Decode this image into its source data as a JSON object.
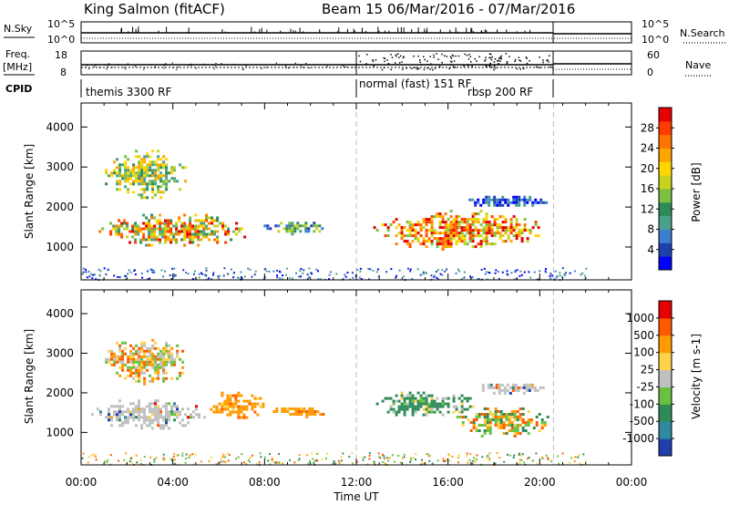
{
  "header": {
    "station": "King Salmon (fitACF)",
    "beam_range": "Beam 15  06/Mar/2016 - 07/Mar/2016"
  },
  "strip": {
    "nsky_label": "N.Sky",
    "nsearch_label": "N.Search",
    "noise_tick_top": "10^5",
    "noise_tick_bottom": "10^0",
    "freq_label": "Freq.",
    "freq_unit": "[MHz]",
    "freq_ticks": [
      "18",
      "8"
    ],
    "nave_label": "Nave",
    "nave_ticks": [
      "60",
      "0"
    ],
    "cpid_label": "CPID",
    "cpid_segments": [
      "themis 3300 RF",
      "normal (fast) 151 RF",
      "rbsp 200 RF"
    ]
  },
  "chart_data": [
    {
      "type": "heatmap",
      "quantity": "Power",
      "ylabel": "Slant Range [km]",
      "xlabel": "Time UT",
      "x_ticks": [
        "00:00",
        "04:00",
        "08:00",
        "12:00",
        "16:00",
        "20:00",
        "00:00"
      ],
      "y_ticks": [
        1000,
        2000,
        3000,
        4000
      ],
      "ylim": [
        180,
        4600
      ],
      "xlim_hours": [
        0,
        24
      ],
      "colorbar_label": "Power [dB]",
      "colorbar_ticks": [
        "4",
        "8",
        "12",
        "16",
        "20",
        "24",
        "28"
      ],
      "colorbar_colors": [
        "#0000ff",
        "#1e3fae",
        "#3c7ed0",
        "#4aa08a",
        "#2e8b57",
        "#7ac043",
        "#c8d31e",
        "#ffd700",
        "#ffa500",
        "#ff7300",
        "#ff3c00",
        "#e60000"
      ],
      "dashed_time_markers_hours": [
        12,
        20.6
      ],
      "regions": [
        {
          "t": [
            0.4,
            7.6
          ],
          "r": [
            1000,
            1900
          ],
          "level": "mid-high"
        },
        {
          "t": [
            0.8,
            4.8
          ],
          "r": [
            2200,
            3500
          ],
          "level": "mid"
        },
        {
          "t": [
            7.6,
            10.9
          ],
          "r": [
            1350,
            1700
          ],
          "level": "low-mid"
        },
        {
          "t": [
            12.5,
            20.6
          ],
          "r": [
            900,
            2000
          ],
          "level": "high"
        },
        {
          "t": [
            16.3,
            20.6
          ],
          "r": [
            2000,
            2350
          ],
          "level": "low"
        }
      ]
    },
    {
      "type": "heatmap",
      "quantity": "Velocity",
      "ylabel": "Slant Range [km]",
      "xlabel": "Time UT",
      "x_ticks": [
        "00:00",
        "04:00",
        "08:00",
        "12:00",
        "16:00",
        "20:00",
        "00:00"
      ],
      "y_ticks": [
        1000,
        2000,
        3000,
        4000
      ],
      "ylim": [
        180,
        4600
      ],
      "xlim_hours": [
        0,
        24
      ],
      "colorbar_label": "Velocity [m s-1]",
      "colorbar_ticks": [
        "1000",
        "500",
        "100",
        "25",
        "-25",
        "-100",
        "-500",
        "-1000"
      ],
      "colorbar_colors": [
        "#1f3fae",
        "#2f8aa0",
        "#2e8b57",
        "#6ac040",
        "#c0c0c0",
        "#ffd24a",
        "#ff9a00",
        "#ff5a00",
        "#e60000"
      ],
      "dashed_time_markers_hours": [
        12,
        20.6
      ],
      "regions": [
        {
          "t": [
            0.2,
            5.5
          ],
          "r": [
            1050,
            1900
          ],
          "level": "grey"
        },
        {
          "t": [
            5.5,
            8.0
          ],
          "r": [
            1300,
            2100
          ],
          "level": "orange"
        },
        {
          "t": [
            0.8,
            4.8
          ],
          "r": [
            2200,
            3500
          ],
          "level": "orange-mix"
        },
        {
          "t": [
            8.0,
            10.8
          ],
          "r": [
            1400,
            1700
          ],
          "level": "orange"
        },
        {
          "t": [
            12.5,
            17.5
          ],
          "r": [
            1400,
            2100
          ],
          "level": "green"
        },
        {
          "t": [
            16.0,
            20.6
          ],
          "r": [
            900,
            1700
          ],
          "level": "orange-green"
        },
        {
          "t": [
            17.0,
            20.2
          ],
          "r": [
            2000,
            2300
          ],
          "level": "grey"
        }
      ]
    }
  ]
}
